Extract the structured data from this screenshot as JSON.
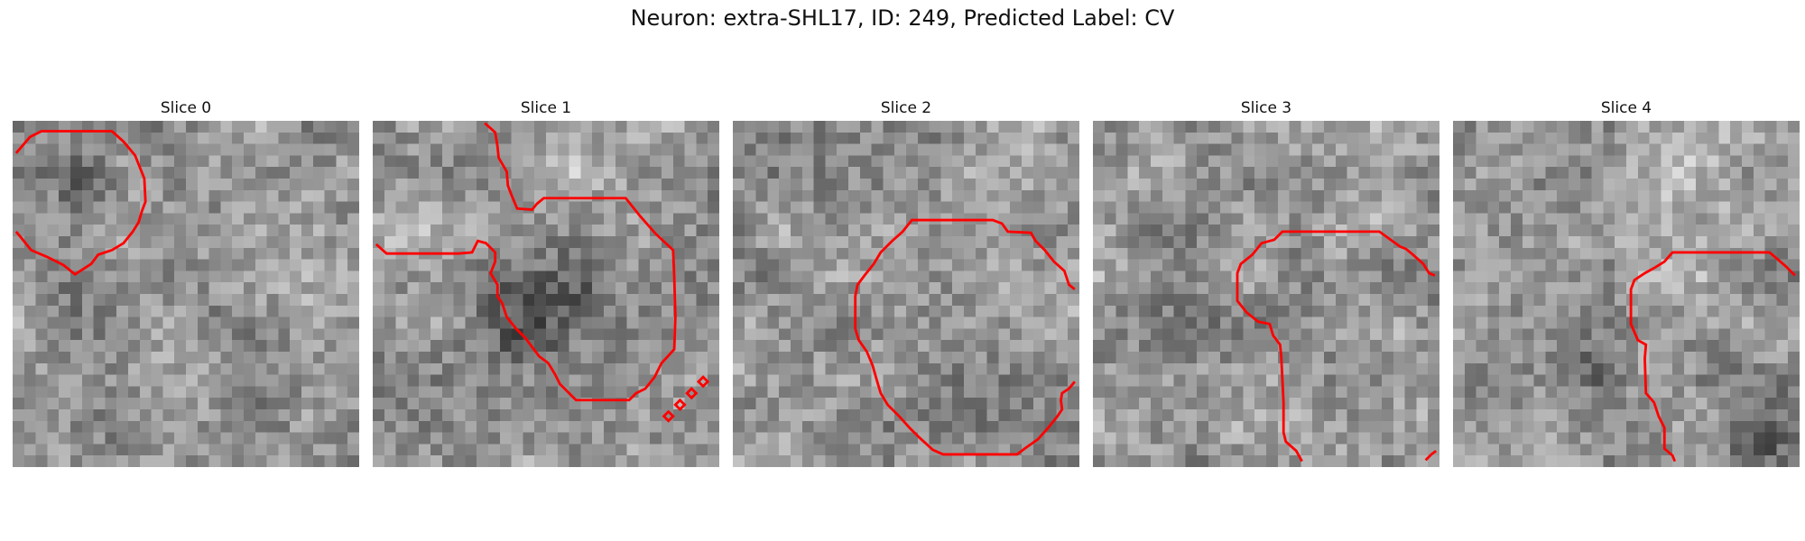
{
  "figure": {
    "title": "Neuron: extra-SHL17, ID: 249, Predicted Label: CV"
  },
  "colors": {
    "contour": "#ff0000",
    "colormap": "gray"
  },
  "slices": [
    {
      "label": "Slice 0",
      "seed": 11,
      "blobs": [
        [
          0.22,
          0.18,
          0.1,
          -55
        ],
        [
          0.28,
          0.7,
          0.22,
          -18
        ],
        [
          0.55,
          0.35,
          0.25,
          12
        ]
      ]
    },
    {
      "label": "Slice 1",
      "seed": 27,
      "blobs": [
        [
          0.42,
          0.6,
          0.2,
          -70
        ],
        [
          0.6,
          0.5,
          0.16,
          -40
        ],
        [
          0.15,
          0.35,
          0.22,
          28
        ],
        [
          0.55,
          0.12,
          0.12,
          30
        ]
      ]
    },
    {
      "label": "Slice 2",
      "seed": 43,
      "blobs": [
        [
          0.5,
          0.5,
          0.35,
          4
        ]
      ]
    },
    {
      "label": "Slice 3",
      "seed": 59,
      "blobs": [
        [
          0.3,
          0.6,
          0.12,
          -30
        ],
        [
          0.75,
          0.15,
          0.18,
          25
        ]
      ]
    },
    {
      "label": "Slice 4",
      "seed": 71,
      "blobs": [
        [
          0.42,
          0.72,
          0.1,
          -45
        ],
        [
          0.9,
          0.9,
          0.15,
          -55
        ],
        [
          0.7,
          0.15,
          0.18,
          30
        ],
        [
          0.45,
          0.4,
          0.3,
          10
        ]
      ]
    }
  ]
}
